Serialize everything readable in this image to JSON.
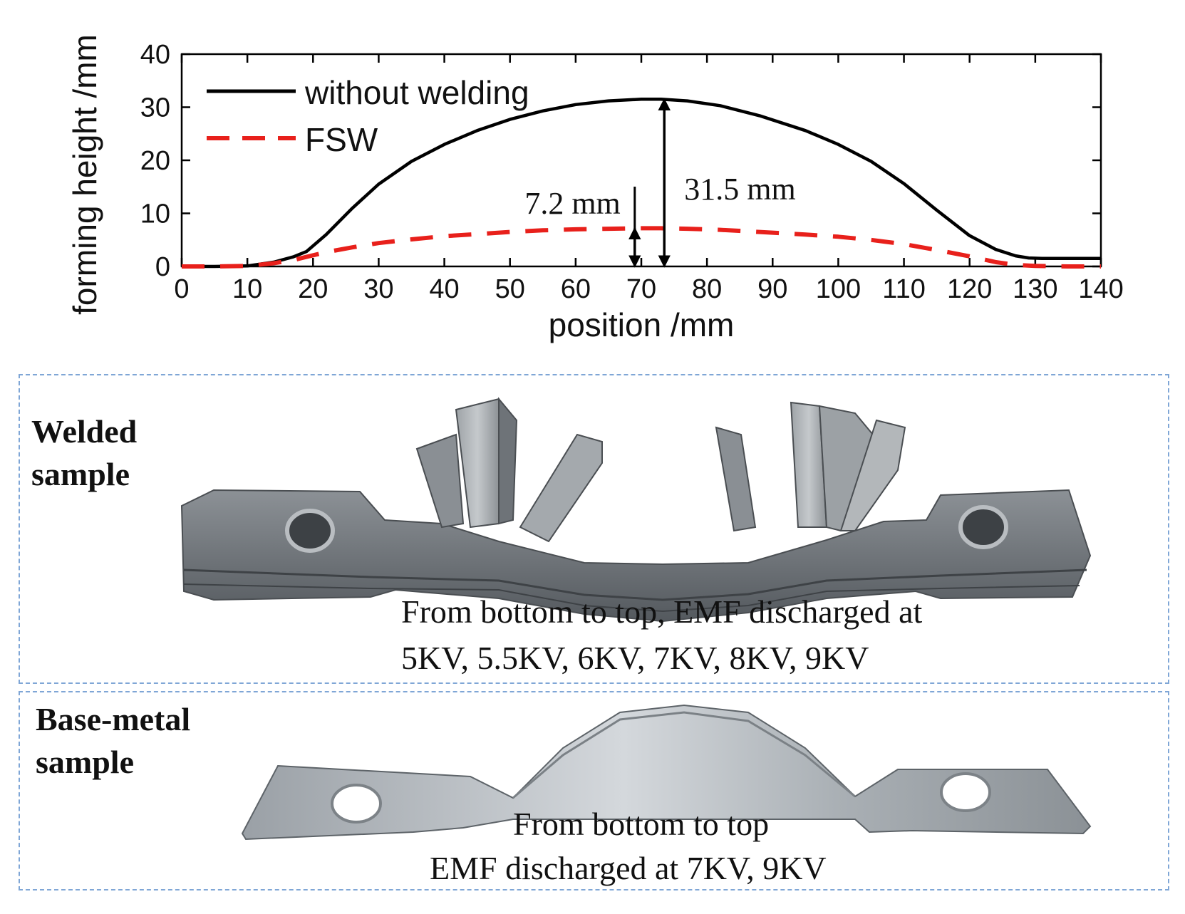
{
  "chart_data": {
    "type": "line",
    "xlabel": "position /mm",
    "ylabel": "forming height /mm",
    "xlim": [
      0,
      140
    ],
    "ylim": [
      0,
      40
    ],
    "xticks": [
      "0",
      "10",
      "20",
      "30",
      "40",
      "50",
      "60",
      "70",
      "80",
      "90",
      "100",
      "110",
      "120",
      "130",
      "140"
    ],
    "yticks": [
      "0",
      "10",
      "20",
      "30",
      "40"
    ],
    "grid": false,
    "legend_position": "top-left",
    "series": [
      {
        "name": "without welding",
        "color": "#000000",
        "style": "solid",
        "x": [
          0,
          5,
          10,
          14,
          17,
          19,
          22,
          26,
          30,
          35,
          40,
          45,
          50,
          55,
          60,
          65,
          70,
          73,
          77,
          82,
          88,
          95,
          100,
          105,
          110,
          115,
          120,
          124,
          127,
          129,
          131,
          134,
          137,
          140
        ],
        "y": [
          0,
          0,
          0.1,
          0.8,
          1.8,
          2.8,
          6,
          11,
          15.5,
          19.8,
          23,
          25.6,
          27.7,
          29.3,
          30.5,
          31.2,
          31.5,
          31.5,
          31.2,
          30.3,
          28.4,
          25.6,
          23,
          19.8,
          15.6,
          10.6,
          5.8,
          3.2,
          2,
          1.6,
          1.5,
          1.5,
          1.5,
          1.5
        ]
      },
      {
        "name": "FSW",
        "color": "#e8201b",
        "style": "dashed",
        "x": [
          0,
          5,
          10,
          14,
          17,
          19,
          22,
          26,
          30,
          35,
          40,
          45,
          50,
          55,
          60,
          65,
          70,
          73,
          77,
          82,
          88,
          95,
          100,
          105,
          110,
          115,
          120,
          124,
          127,
          130,
          135,
          140
        ],
        "y": [
          0,
          0,
          0.1,
          0.6,
          1.2,
          1.8,
          2.7,
          3.6,
          4.4,
          5.1,
          5.7,
          6.1,
          6.5,
          6.8,
          7,
          7.1,
          7.2,
          7.2,
          7.1,
          6.9,
          6.5,
          6,
          5.6,
          5,
          4.2,
          3.1,
          1.9,
          0.8,
          0.3,
          0.1,
          0,
          0
        ]
      }
    ],
    "annotations": [
      {
        "text": "31.5 mm",
        "x": 73.5,
        "from": 0,
        "to": 31.5
      },
      {
        "text": "7.2 mm",
        "x": 69,
        "from": 0,
        "to": 7.2
      }
    ]
  },
  "panels": {
    "welded": {
      "label": "Welded\nsample",
      "caption_line1": "From bottom to top, EMF discharged at",
      "caption_line2": "5KV, 5.5KV, 6KV, 7KV, 8KV, 9KV"
    },
    "base": {
      "label": "Base-metal\nsample",
      "caption_line1": "From bottom to top",
      "caption_line2": "EMF discharged at 7KV, 9KV"
    }
  }
}
